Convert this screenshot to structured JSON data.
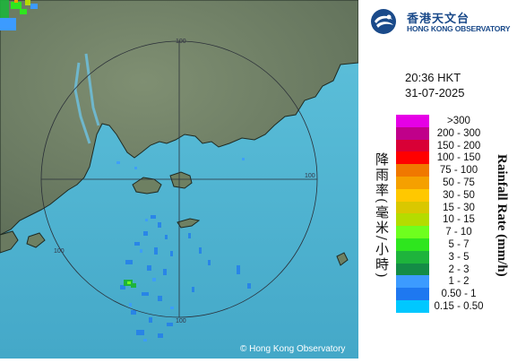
{
  "logo": {
    "name_zh": "香港天文台",
    "name_en": "HONG KONG OBSERVATORY",
    "icon": "hko-logo-icon"
  },
  "timestamp": {
    "time": "20:36 HKT",
    "date": "31-07-2025"
  },
  "axis_title_zh": "降雨率(毫米/小時)",
  "axis_title_en": "Rainfall Rate (mm/h)",
  "legend": [
    {
      "label": ">300",
      "color": "#e600e6"
    },
    {
      "label": "200 - 300",
      "color": "#c0008a"
    },
    {
      "label": "150 - 200",
      "color": "#d90036"
    },
    {
      "label": "100 - 150",
      "color": "#ff0000"
    },
    {
      "label": "75 - 100",
      "color": "#f07800"
    },
    {
      "label": "50 - 75",
      "color": "#f5a000"
    },
    {
      "label": "30 - 50",
      "color": "#ffc800"
    },
    {
      "label": "15 - 30",
      "color": "#d9c800"
    },
    {
      "label": "10 - 15",
      "color": "#b4dc00"
    },
    {
      "label": "7 - 10",
      "color": "#6eff1e"
    },
    {
      "label": "5 - 7",
      "color": "#2ee61e"
    },
    {
      "label": "3 - 5",
      "color": "#1eb43c"
    },
    {
      "label": "2 - 3",
      "color": "#148c46"
    },
    {
      "label": "1 - 2",
      "color": "#3c9bff"
    },
    {
      "label": "0.50 - 1",
      "color": "#1e78f0"
    },
    {
      "label": "0.15 - 0.50",
      "color": "#00c8ff"
    }
  ],
  "map": {
    "range_rings": [
      "100",
      "100",
      "100",
      "100"
    ],
    "copyright": "© Hong Kong Observatory"
  }
}
